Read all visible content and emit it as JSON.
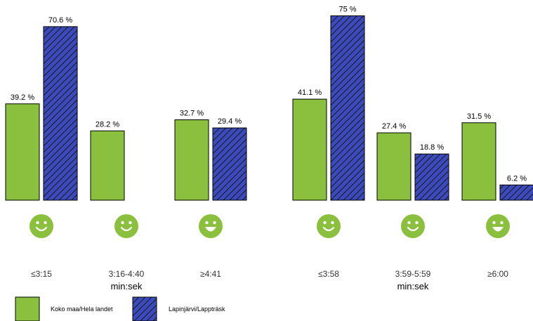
{
  "colors": {
    "national": "#8ac03e",
    "local": "#3b4bbd",
    "hatch": "#1a1a1a",
    "smiley": "#8ac03e"
  },
  "icons": [
    "smiley-icon"
  ],
  "legend": {
    "national": "Koko maa/Hela landet",
    "local": "Lapinjärvi/Lappträsk"
  },
  "chart_data": [
    {
      "type": "bar",
      "categories": [
        "≤3:15",
        "3:16-4:40",
        "≥4:41"
      ],
      "xlabel": "min:sek",
      "series": [
        {
          "name": "Koko maa/Hela landet",
          "values": [
            39.2,
            28.2,
            32.7
          ],
          "labels": [
            "39.2 %",
            "28.2 %",
            "32.7 %"
          ]
        },
        {
          "name": "Lapinjärvi/Lappträsk",
          "values": [
            70.6,
            null,
            29.4
          ],
          "labels": [
            "70.6 %",
            "",
            "29.4 %"
          ]
        }
      ]
    },
    {
      "type": "bar",
      "categories": [
        "≤3:58",
        "3:59-5:59",
        "≥6:00"
      ],
      "xlabel": "min:sek",
      "series": [
        {
          "name": "Koko maa/Hela landet",
          "values": [
            41.1,
            27.4,
            31.5
          ],
          "labels": [
            "41.1 %",
            "27.4 %",
            "31.5 %"
          ]
        },
        {
          "name": "Lapinjärvi/Lappträsk",
          "values": [
            75,
            18.8,
            6.2
          ],
          "labels": [
            "75 %",
            "18.8 %",
            "6.2 %"
          ]
        }
      ]
    }
  ]
}
